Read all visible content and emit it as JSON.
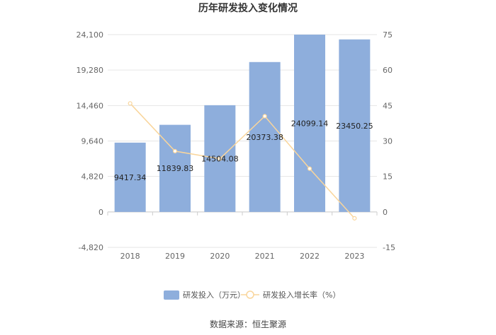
{
  "chart_data": {
    "type": "bar",
    "title": "历年研发投入变化情况",
    "categories": [
      "2018",
      "2019",
      "2020",
      "2021",
      "2022",
      "2023"
    ],
    "series": [
      {
        "name": "研发投入（万元）",
        "type": "bar",
        "axis": "left",
        "color": "#8eaedc",
        "values": [
          9417.34,
          11839.83,
          14504.08,
          20373.38,
          24099.14,
          23450.25
        ],
        "labels": [
          "9417.34",
          "11839.83",
          "14504.08",
          "20373.38",
          "24099.14",
          "23450.25"
        ]
      },
      {
        "name": "研发投入增长率（%）",
        "type": "line",
        "axis": "right",
        "color": "#f9d59b",
        "values": [
          45.9,
          25.7,
          22.5,
          40.5,
          18.3,
          -2.7
        ]
      }
    ],
    "y_left": {
      "lim": [
        -4820,
        24100
      ],
      "ticks": [
        -4820,
        0,
        4820,
        9640,
        14460,
        19280,
        24100
      ],
      "tick_labels": [
        "-4,820",
        "0",
        "4,820",
        "9,640",
        "14,460",
        "19,280",
        "24,100"
      ]
    },
    "y_right": {
      "lim": [
        -15,
        75
      ],
      "ticks": [
        -15,
        0,
        15,
        30,
        45,
        60,
        75
      ],
      "tick_labels": [
        "-15",
        "0",
        "15",
        "30",
        "45",
        "60",
        "75"
      ]
    },
    "grid": true,
    "legend_position": "bottom",
    "source": "数据来源：恒生聚源"
  }
}
